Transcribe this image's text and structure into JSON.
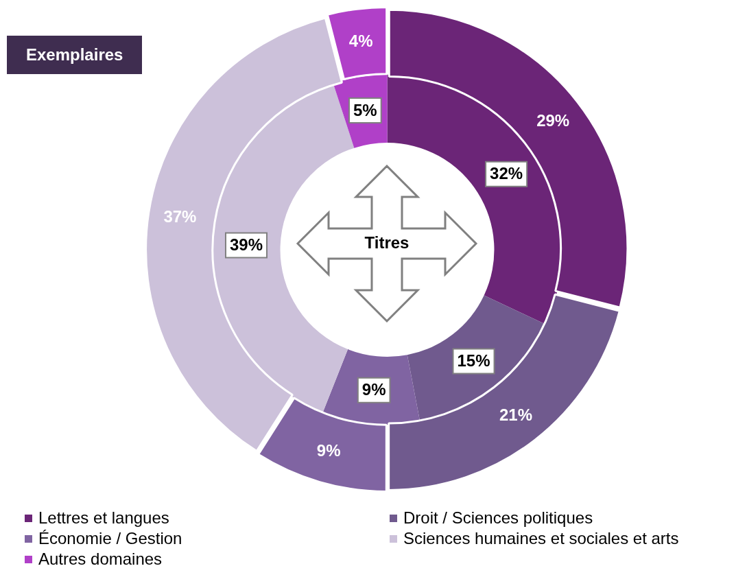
{
  "chart_data": {
    "type": "donut",
    "categories": [
      "Lettres et langues",
      "Droit / Sciences politiques",
      "Économie / Gestion",
      "Sciences humaines et sociales et arts",
      "Autres domaines"
    ],
    "colors": [
      "#6b2577",
      "#705a8e",
      "#8064a2",
      "#ccc1da",
      "#b040c8"
    ],
    "series": [
      {
        "name": "Exemplaires",
        "values": [
          29,
          21,
          9,
          37,
          4
        ],
        "value_labels": [
          "29%",
          "21%",
          "9%",
          "37%",
          "4%"
        ]
      },
      {
        "name": "Titres",
        "values": [
          32,
          15,
          9,
          39,
          5
        ],
        "value_labels": [
          "32%",
          "15%",
          "9%",
          "39%",
          "5%"
        ]
      }
    ],
    "legend": "bottom"
  }
}
